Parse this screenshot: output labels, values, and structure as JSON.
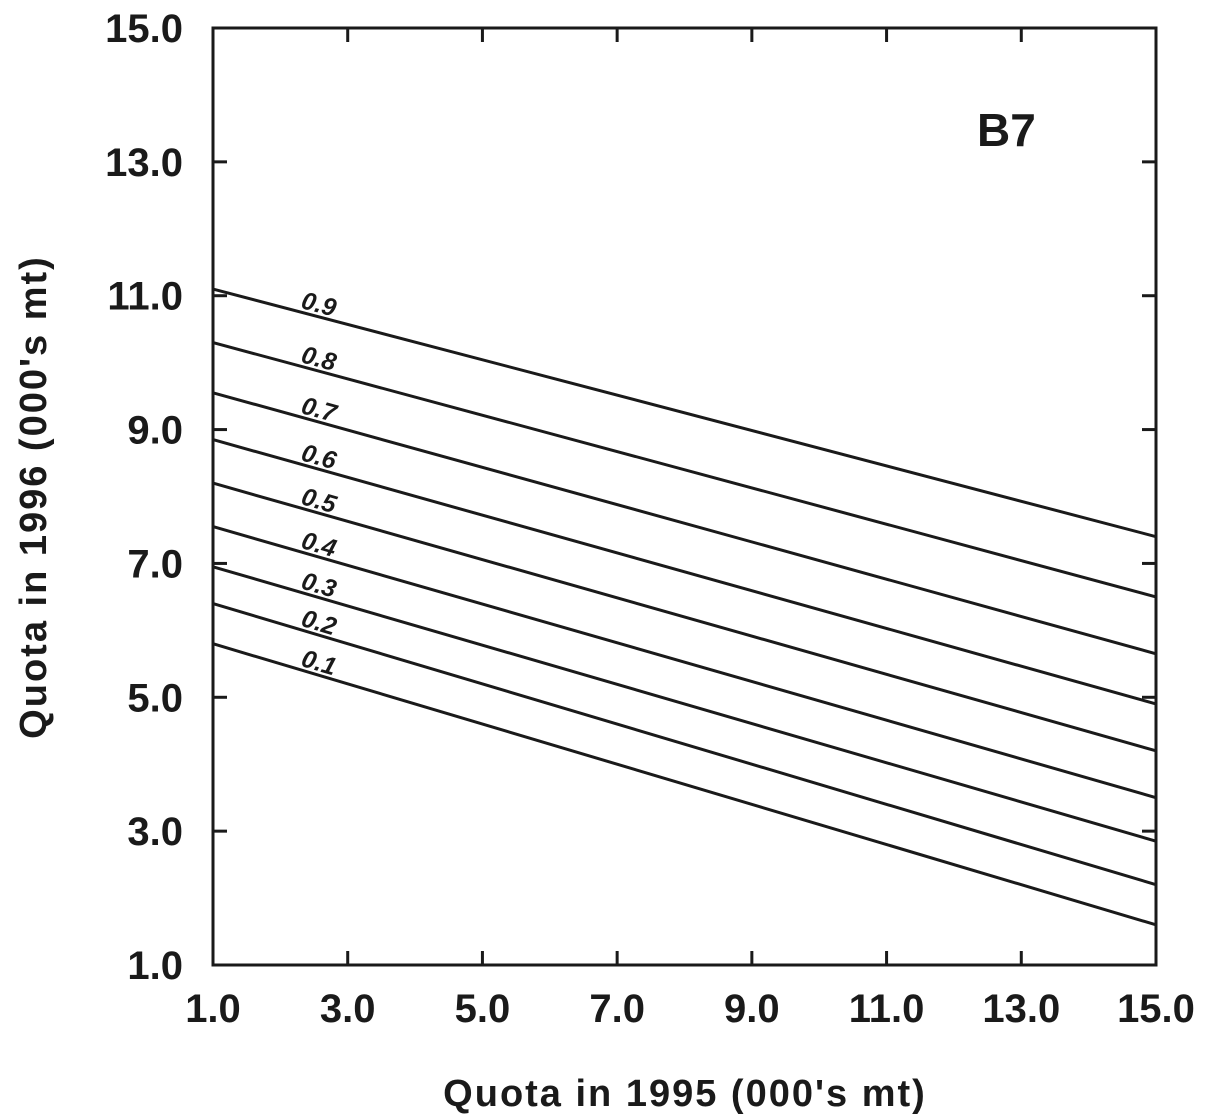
{
  "chart_data": {
    "type": "line",
    "title": "",
    "panel_label": "B7",
    "xlabel": "Quota in 1995 (000's mt)",
    "ylabel": "Quota in 1996 (000's mt)",
    "xlim": [
      1.0,
      15.0
    ],
    "ylim": [
      1.0,
      15.0
    ],
    "x_ticks": [
      "1.0",
      "3.0",
      "5.0",
      "7.0",
      "9.0",
      "11.0",
      "13.0",
      "15.0"
    ],
    "y_ticks": [
      "1.0",
      "3.0",
      "5.0",
      "7.0",
      "9.0",
      "11.0",
      "13.0",
      "15.0"
    ],
    "grid": false,
    "legend": "inline labels near left end of each line",
    "series": [
      {
        "name": "0.9",
        "x": [
          1.0,
          15.0
        ],
        "y": [
          11.1,
          7.4
        ]
      },
      {
        "name": "0.8",
        "x": [
          1.0,
          15.0
        ],
        "y": [
          10.3,
          6.5
        ]
      },
      {
        "name": "0.7",
        "x": [
          1.0,
          15.0
        ],
        "y": [
          9.55,
          5.65
        ]
      },
      {
        "name": "0.6",
        "x": [
          1.0,
          15.0
        ],
        "y": [
          8.85,
          4.9
        ]
      },
      {
        "name": "0.5",
        "x": [
          1.0,
          15.0
        ],
        "y": [
          8.2,
          4.2
        ]
      },
      {
        "name": "0.4",
        "x": [
          1.0,
          15.0
        ],
        "y": [
          7.55,
          3.5
        ]
      },
      {
        "name": "0.3",
        "x": [
          1.0,
          15.0
        ],
        "y": [
          6.95,
          2.85
        ]
      },
      {
        "name": "0.2",
        "x": [
          1.0,
          15.0
        ],
        "y": [
          6.4,
          2.2
        ]
      },
      {
        "name": "0.1",
        "x": [
          1.0,
          15.0
        ],
        "y": [
          5.8,
          1.6
        ]
      }
    ]
  }
}
